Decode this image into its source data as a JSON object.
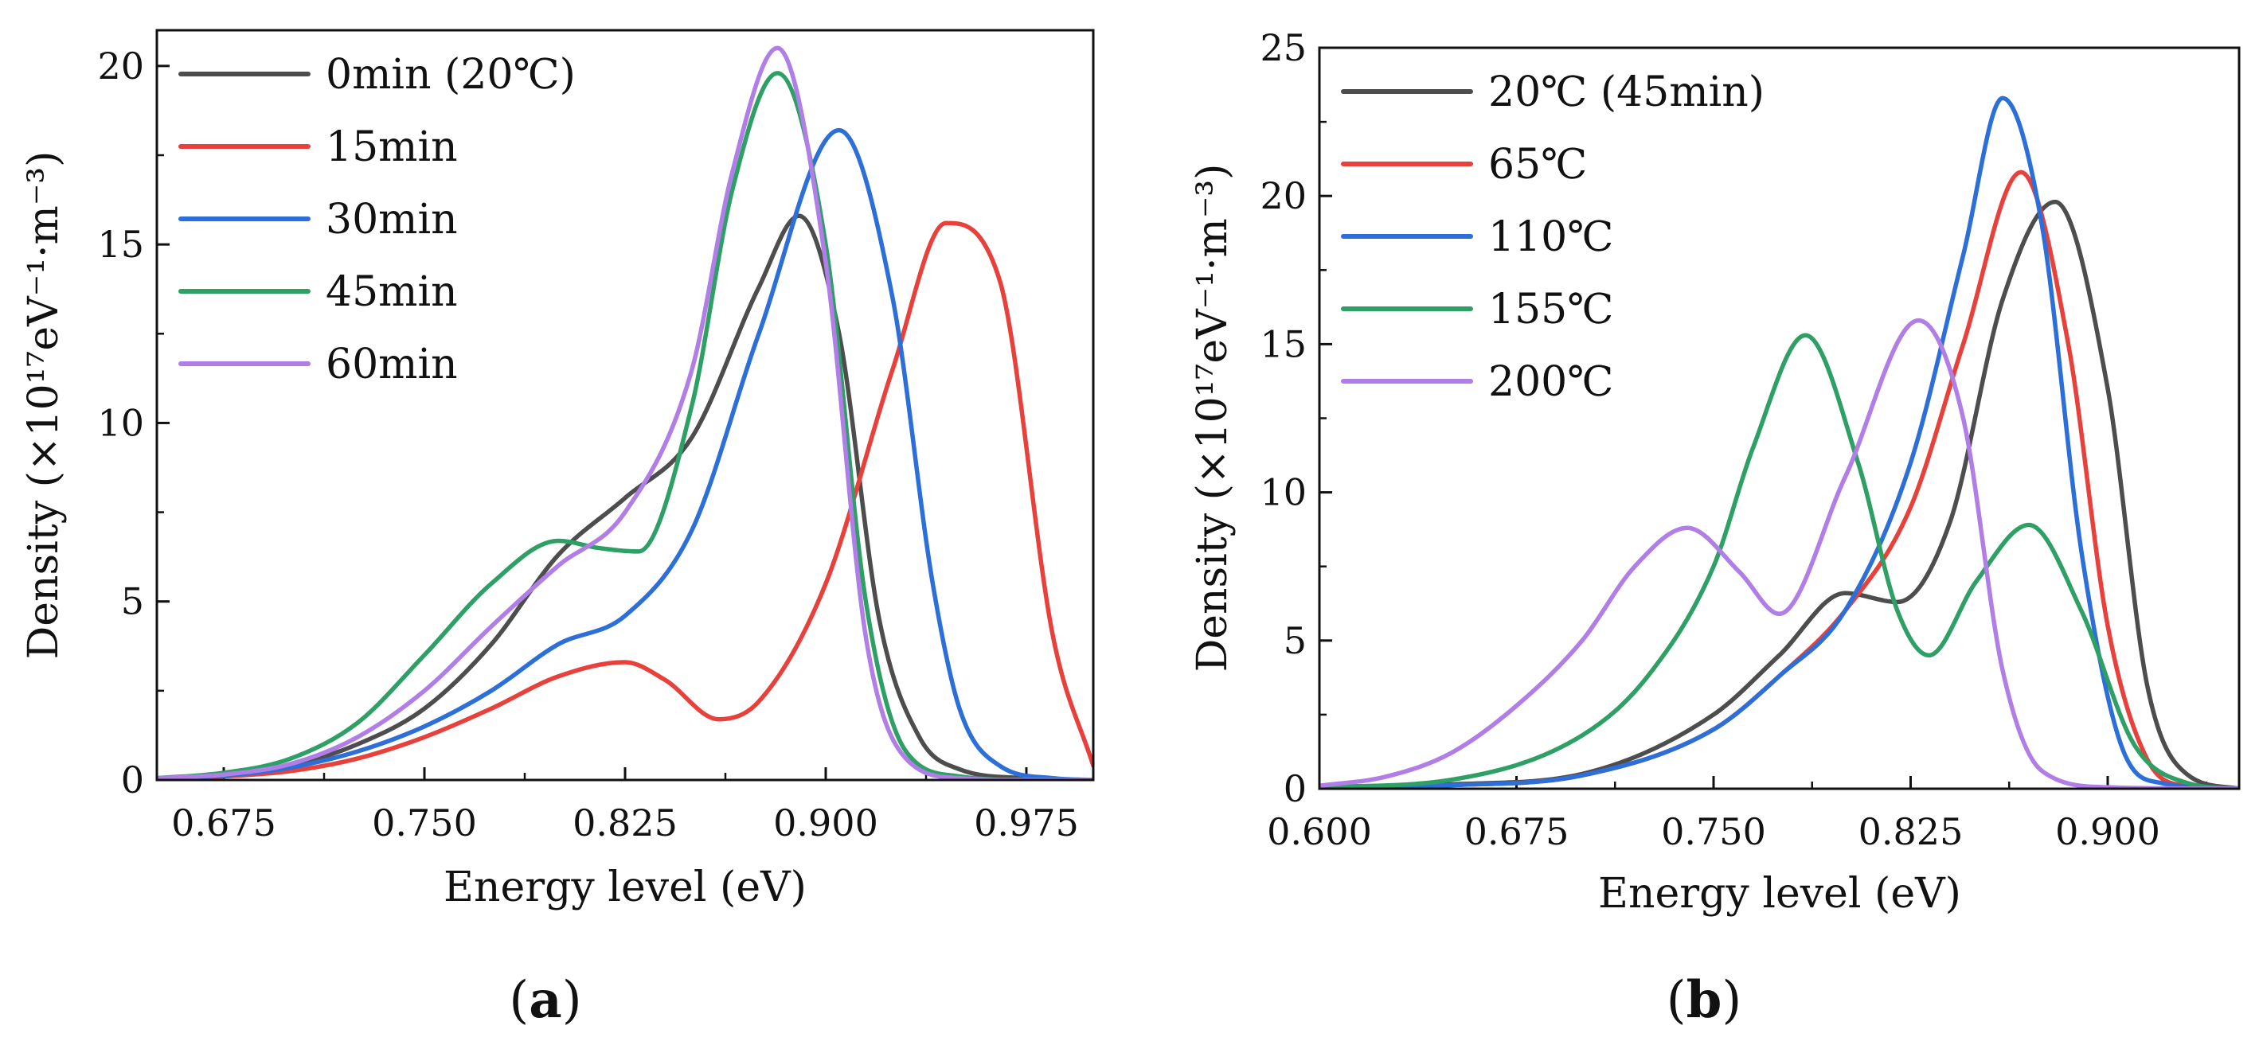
{
  "chart_data": [
    {
      "panel": "(a)",
      "panel_letter": "a",
      "type": "line",
      "xlabel": "Energy level (eV)",
      "ylabel": "Density (×10¹⁷eV⁻¹·m⁻³)",
      "xlim": [
        0.65,
        1.0
      ],
      "ylim": [
        0,
        21
      ],
      "xticks": [
        0.675,
        0.75,
        0.825,
        0.9,
        0.975
      ],
      "xtick_labels": [
        "0.675",
        "0.750",
        "0.825",
        "0.900",
        "0.975"
      ],
      "yticks": [
        0,
        5,
        10,
        15,
        20
      ],
      "ytick_labels": [
        "0",
        "5",
        "10",
        "15",
        "20"
      ],
      "legend_position": "top-left",
      "series": [
        {
          "name": "0min  (20℃)",
          "color": "#4d4d4d",
          "x": [
            0.65,
            0.675,
            0.7,
            0.725,
            0.75,
            0.775,
            0.8,
            0.825,
            0.85,
            0.875,
            0.89,
            0.905,
            0.92,
            0.935,
            0.95,
            0.975,
            1.0
          ],
          "y": [
            0.05,
            0.15,
            0.4,
            1.0,
            2.0,
            3.8,
            6.3,
            7.9,
            9.6,
            13.8,
            15.8,
            12.5,
            4.5,
            1.2,
            0.3,
            0.05,
            0
          ]
        },
        {
          "name": "15min",
          "color": "#e8403b",
          "x": [
            0.65,
            0.675,
            0.7,
            0.725,
            0.75,
            0.775,
            0.8,
            0.825,
            0.84,
            0.86,
            0.875,
            0.9,
            0.925,
            0.945,
            0.965,
            0.985,
            1.0
          ],
          "y": [
            0.03,
            0.1,
            0.25,
            0.6,
            1.2,
            2.0,
            2.9,
            3.3,
            2.8,
            1.7,
            2.2,
            5.5,
            11.5,
            15.6,
            14.0,
            4.0,
            0.4
          ]
        },
        {
          "name": "30min",
          "color": "#2c6fd8",
          "x": [
            0.65,
            0.675,
            0.7,
            0.725,
            0.75,
            0.775,
            0.8,
            0.825,
            0.85,
            0.875,
            0.905,
            0.925,
            0.94,
            0.95,
            0.965,
            0.985,
            1.0
          ],
          "y": [
            0.05,
            0.12,
            0.35,
            0.8,
            1.5,
            2.5,
            3.8,
            4.6,
            7.0,
            12.5,
            18.2,
            13.5,
            5.5,
            2.0,
            0.4,
            0.05,
            0
          ]
        },
        {
          "name": "45min",
          "color": "#2ea065",
          "x": [
            0.65,
            0.675,
            0.7,
            0.725,
            0.75,
            0.775,
            0.8,
            0.815,
            0.83,
            0.85,
            0.865,
            0.882,
            0.9,
            0.915,
            0.93,
            0.95,
            0.975,
            1.0
          ],
          "y": [
            0.05,
            0.2,
            0.6,
            1.6,
            3.5,
            5.5,
            6.7,
            6.5,
            6.4,
            10.5,
            16.5,
            19.8,
            15.0,
            5.0,
            0.8,
            0.1,
            0,
            0
          ]
        },
        {
          "name": "60min",
          "color": "#b07ee6",
          "x": [
            0.65,
            0.675,
            0.7,
            0.725,
            0.75,
            0.775,
            0.8,
            0.825,
            0.85,
            0.865,
            0.882,
            0.9,
            0.915,
            0.93,
            0.95,
            0.975,
            1.0
          ],
          "y": [
            0.05,
            0.15,
            0.45,
            1.2,
            2.5,
            4.3,
            6.0,
            7.5,
            11.5,
            17.0,
            20.5,
            14.5,
            4.0,
            0.6,
            0.05,
            0,
            0
          ]
        }
      ]
    },
    {
      "panel": "(b)",
      "panel_letter": "b",
      "type": "line",
      "xlabel": "Energy level (eV)",
      "ylabel": "Density (×10¹⁷eV⁻¹·m⁻³)",
      "xlim": [
        0.6,
        0.95
      ],
      "ylim": [
        0,
        25
      ],
      "xticks": [
        0.6,
        0.675,
        0.75,
        0.825,
        0.9
      ],
      "xtick_labels": [
        "0.600",
        "0.675",
        "0.750",
        "0.825",
        "0.900"
      ],
      "yticks": [
        0,
        5,
        10,
        15,
        20,
        25
      ],
      "ytick_labels": [
        "0",
        "5",
        "10",
        "15",
        "20",
        "25"
      ],
      "legend_position": "top-left",
      "series": [
        {
          "name": "20℃ (45min)",
          "color": "#4d4d4d",
          "x": [
            0.6,
            0.65,
            0.7,
            0.75,
            0.775,
            0.8,
            0.82,
            0.84,
            0.86,
            0.88,
            0.9,
            0.915,
            0.93,
            0.95
          ],
          "y": [
            0.05,
            0.15,
            0.5,
            2.5,
            4.5,
            6.6,
            6.3,
            9.0,
            16.5,
            19.8,
            13.5,
            3.5,
            0.5,
            0
          ]
        },
        {
          "name": "65℃",
          "color": "#e8403b",
          "x": [
            0.6,
            0.65,
            0.7,
            0.75,
            0.775,
            0.8,
            0.825,
            0.845,
            0.867,
            0.885,
            0.9,
            0.915,
            0.93,
            0.95
          ],
          "y": [
            0.05,
            0.12,
            0.45,
            2.0,
            3.8,
            6.0,
            9.5,
            15.0,
            20.8,
            15.0,
            5.5,
            1.0,
            0.1,
            0
          ]
        },
        {
          "name": "110℃",
          "color": "#2c6fd8",
          "x": [
            0.6,
            0.65,
            0.7,
            0.75,
            0.775,
            0.8,
            0.825,
            0.845,
            0.86,
            0.875,
            0.89,
            0.905,
            0.92,
            0.95
          ],
          "y": [
            0.05,
            0.12,
            0.45,
            2.0,
            3.8,
            6.0,
            11.0,
            18.0,
            23.3,
            19.0,
            8.0,
            1.5,
            0.2,
            0
          ]
        },
        {
          "name": "155℃",
          "color": "#2ea065",
          "x": [
            0.6,
            0.65,
            0.7,
            0.725,
            0.75,
            0.765,
            0.785,
            0.805,
            0.82,
            0.832,
            0.85,
            0.87,
            0.89,
            0.91,
            0.93,
            0.95
          ],
          "y": [
            0.05,
            0.3,
            1.8,
            3.8,
            7.5,
            11.5,
            15.3,
            11.0,
            6.0,
            4.5,
            7.0,
            8.9,
            6.0,
            1.5,
            0.2,
            0
          ]
        },
        {
          "name": "200℃",
          "color": "#b07ee6",
          "x": [
            0.6,
            0.625,
            0.65,
            0.675,
            0.7,
            0.72,
            0.74,
            0.76,
            0.775,
            0.8,
            0.828,
            0.845,
            0.86,
            0.875,
            0.9,
            0.95
          ],
          "y": [
            0.1,
            0.4,
            1.2,
            2.8,
            5.0,
            7.5,
            8.8,
            7.3,
            5.9,
            10.5,
            15.8,
            12.5,
            4.0,
            0.6,
            0.05,
            0
          ]
        }
      ]
    }
  ]
}
